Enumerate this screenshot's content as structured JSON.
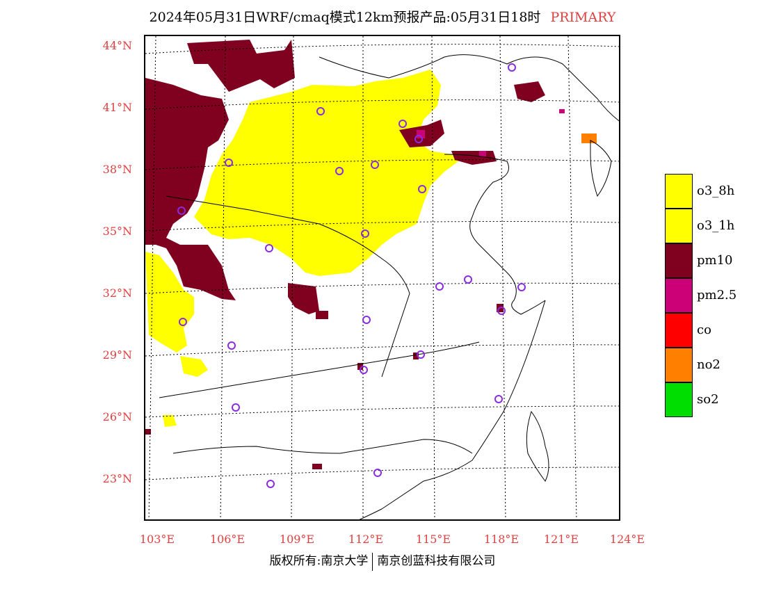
{
  "title": {
    "main": "2024年05月31日WRF/cmaq模式12km预报产品:05月31日18时",
    "tag": "PRIMARY"
  },
  "axes": {
    "lat_labels": [
      "44°N",
      "41°N",
      "38°N",
      "35°N",
      "32°N",
      "29°N",
      "26°N",
      "23°N"
    ],
    "lon_labels": [
      "103°E",
      "106°E",
      "109°E",
      "112°E",
      "115°E",
      "118°E",
      "121°E",
      "124°E"
    ]
  },
  "legend": [
    {
      "label": "o3_8h",
      "color": "#ffff00"
    },
    {
      "label": "o3_1h",
      "color": "#ffff00"
    },
    {
      "label": "pm10",
      "color": "#800020"
    },
    {
      "label": "pm2.5",
      "color": "#cc0077"
    },
    {
      "label": "co",
      "color": "#ff0000"
    },
    {
      "label": "no2",
      "color": "#ff8000"
    },
    {
      "label": "so2",
      "color": "#00dd00"
    }
  ],
  "copyright": {
    "left": "版权所有:南京大学",
    "right": "南京创蓝科技有限公司"
  }
}
